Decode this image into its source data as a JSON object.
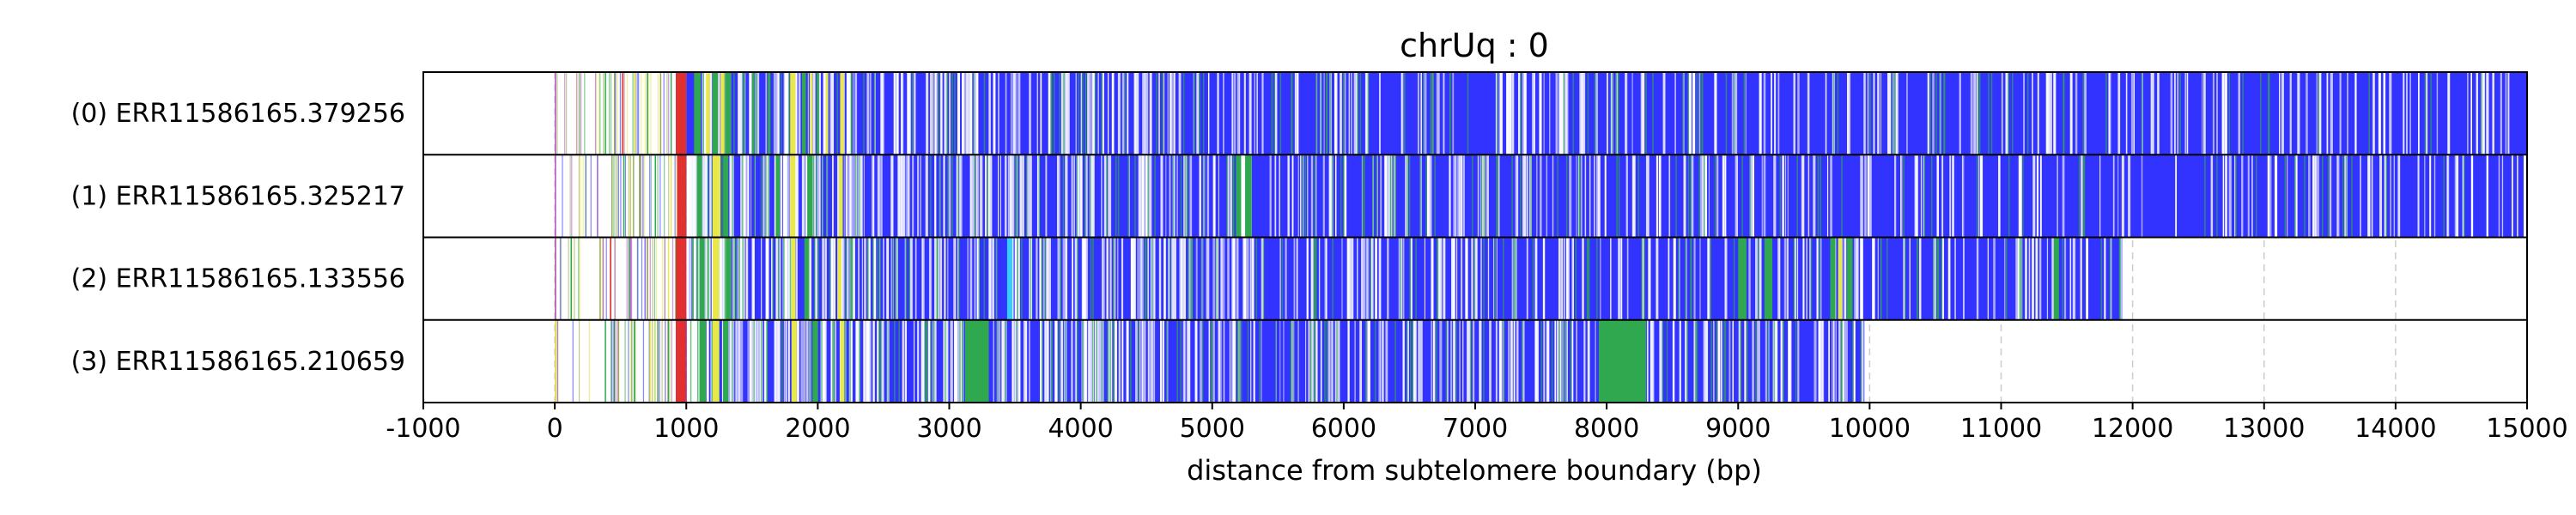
{
  "chart_data": {
    "type": "read-annotation-track",
    "title": "chrUq : 0",
    "xlabel": "distance from subtelomere boundary (bp)",
    "xlim": [
      -1000,
      15000
    ],
    "x_ticks": [
      -1000,
      0,
      1000,
      2000,
      3000,
      4000,
      5000,
      6000,
      7000,
      8000,
      9000,
      10000,
      11000,
      12000,
      13000,
      14000,
      15000
    ],
    "grid": {
      "vertical_dashed": true
    },
    "colors": {
      "main": "#3333ff",
      "white": "#ffffff",
      "green": "#2fa84f",
      "yellow": "#e8e84a",
      "red": "#e03030",
      "cyan": "#33d0ff",
      "purple": "#b04dc8",
      "olive": "#9aa84a"
    },
    "reads": [
      {
        "label": "(0) ERR11586165.379256",
        "start": 0,
        "end": 15000,
        "dense_from": 1000,
        "segments": [
          {
            "x0": 0,
            "x1": 1,
            "color": "purple"
          },
          {
            "x0": 380,
            "x1": 384,
            "color": "green"
          },
          {
            "x0": 450,
            "x1": 454,
            "color": "olive"
          },
          {
            "x0": 510,
            "x1": 514,
            "color": "red"
          },
          {
            "x0": 600,
            "x1": 604,
            "color": "yellow"
          },
          {
            "x0": 700,
            "x1": 704,
            "color": "green"
          },
          {
            "x0": 800,
            "x1": 806,
            "color": "olive"
          },
          {
            "x0": 880,
            "x1": 886,
            "color": "green"
          },
          {
            "x0": 920,
            "x1": 1000,
            "color": "red"
          },
          {
            "x0": 1000,
            "x1": 1060,
            "color": "main"
          },
          {
            "x0": 1060,
            "x1": 1110,
            "color": "green"
          },
          {
            "x0": 1150,
            "x1": 1180,
            "color": "yellow"
          },
          {
            "x0": 1200,
            "x1": 1240,
            "color": "green"
          },
          {
            "x0": 1260,
            "x1": 1290,
            "color": "yellow"
          },
          {
            "x0": 1300,
            "x1": 1340,
            "color": "green"
          },
          {
            "x0": 1500,
            "x1": 1520,
            "color": "green"
          },
          {
            "x0": 1620,
            "x1": 1640,
            "color": "green"
          },
          {
            "x0": 1790,
            "x1": 1830,
            "color": "yellow"
          },
          {
            "x0": 1880,
            "x1": 1910,
            "color": "green"
          },
          {
            "x0": 1940,
            "x1": 1960,
            "color": "yellow"
          },
          {
            "x0": 1990,
            "x1": 2010,
            "color": "green"
          },
          {
            "x0": 2060,
            "x1": 2080,
            "color": "yellow"
          },
          {
            "x0": 2170,
            "x1": 2200,
            "color": "yellow"
          }
        ]
      },
      {
        "label": "(1) ERR11586165.325217",
        "start": 0,
        "end": 15000,
        "dense_from": 1000,
        "segments": [
          {
            "x0": 0,
            "x1": 3,
            "color": "purple"
          },
          {
            "x0": 430,
            "x1": 434,
            "color": "olive"
          },
          {
            "x0": 520,
            "x1": 524,
            "color": "green"
          },
          {
            "x0": 640,
            "x1": 644,
            "color": "olive"
          },
          {
            "x0": 760,
            "x1": 764,
            "color": "green"
          },
          {
            "x0": 880,
            "x1": 884,
            "color": "yellow"
          },
          {
            "x0": 930,
            "x1": 1000,
            "color": "red"
          },
          {
            "x0": 1080,
            "x1": 1120,
            "color": "green"
          },
          {
            "x0": 1200,
            "x1": 1260,
            "color": "yellow"
          },
          {
            "x0": 1280,
            "x1": 1320,
            "color": "green"
          },
          {
            "x0": 1680,
            "x1": 1710,
            "color": "green"
          },
          {
            "x0": 1790,
            "x1": 1830,
            "color": "yellow"
          },
          {
            "x0": 1920,
            "x1": 1960,
            "color": "green"
          },
          {
            "x0": 2160,
            "x1": 2190,
            "color": "yellow"
          },
          {
            "x0": 5180,
            "x1": 5300,
            "color": "green"
          },
          {
            "x0": 5220,
            "x1": 5250,
            "color": "white"
          }
        ]
      },
      {
        "label": "(2) ERR11586165.133556",
        "start": 0,
        "end": 11920,
        "dense_from": 1000,
        "segments": [
          {
            "x0": 0,
            "x1": 3,
            "color": "purple"
          },
          {
            "x0": 120,
            "x1": 124,
            "color": "green"
          },
          {
            "x0": 340,
            "x1": 344,
            "color": "olive"
          },
          {
            "x0": 420,
            "x1": 424,
            "color": "red"
          },
          {
            "x0": 560,
            "x1": 564,
            "color": "green"
          },
          {
            "x0": 700,
            "x1": 704,
            "color": "olive"
          },
          {
            "x0": 860,
            "x1": 864,
            "color": "yellow"
          },
          {
            "x0": 920,
            "x1": 1000,
            "color": "red"
          },
          {
            "x0": 1100,
            "x1": 1140,
            "color": "green"
          },
          {
            "x0": 1200,
            "x1": 1250,
            "color": "yellow"
          },
          {
            "x0": 1300,
            "x1": 1340,
            "color": "green"
          },
          {
            "x0": 1800,
            "x1": 1830,
            "color": "yellow"
          },
          {
            "x0": 1900,
            "x1": 1930,
            "color": "green"
          },
          {
            "x0": 2150,
            "x1": 2180,
            "color": "yellow"
          },
          {
            "x0": 3440,
            "x1": 3480,
            "color": "cyan"
          },
          {
            "x0": 9000,
            "x1": 9060,
            "color": "green"
          },
          {
            "x0": 9200,
            "x1": 9260,
            "color": "green"
          },
          {
            "x0": 9700,
            "x1": 9740,
            "color": "green"
          },
          {
            "x0": 9760,
            "x1": 9790,
            "color": "yellow"
          },
          {
            "x0": 9830,
            "x1": 9870,
            "color": "green"
          },
          {
            "x0": 11400,
            "x1": 11440,
            "color": "green"
          }
        ]
      },
      {
        "label": "(3) ERR11586165.210659",
        "start": 0,
        "end": 9960,
        "dense_from": 1000,
        "segments": [
          {
            "x0": 0,
            "x1": 3,
            "color": "yellow"
          },
          {
            "x0": 380,
            "x1": 384,
            "color": "green"
          },
          {
            "x0": 480,
            "x1": 484,
            "color": "olive"
          },
          {
            "x0": 600,
            "x1": 604,
            "color": "green"
          },
          {
            "x0": 720,
            "x1": 724,
            "color": "yellow"
          },
          {
            "x0": 860,
            "x1": 864,
            "color": "green"
          },
          {
            "x0": 920,
            "x1": 1000,
            "color": "red"
          },
          {
            "x0": 1100,
            "x1": 1150,
            "color": "green"
          },
          {
            "x0": 1200,
            "x1": 1250,
            "color": "yellow"
          },
          {
            "x0": 1280,
            "x1": 1320,
            "color": "green"
          },
          {
            "x0": 1800,
            "x1": 1840,
            "color": "yellow"
          },
          {
            "x0": 1960,
            "x1": 2000,
            "color": "green"
          },
          {
            "x0": 2170,
            "x1": 2200,
            "color": "yellow"
          },
          {
            "x0": 3120,
            "x1": 3300,
            "color": "green"
          },
          {
            "x0": 7940,
            "x1": 8300,
            "color": "green"
          }
        ]
      }
    ]
  }
}
